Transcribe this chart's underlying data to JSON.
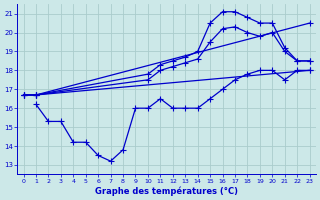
{
  "title": "Graphe des températures (°C)",
  "background_color": "#cce8e8",
  "grid_color": "#aacccc",
  "line_color": "#0000cc",
  "xlim": [
    -0.5,
    23.5
  ],
  "ylim": [
    12.5,
    21.5
  ],
  "xticks": [
    0,
    1,
    2,
    3,
    4,
    5,
    6,
    7,
    8,
    9,
    10,
    11,
    12,
    13,
    14,
    15,
    16,
    17,
    18,
    19,
    20,
    21,
    22,
    23
  ],
  "yticks": [
    13,
    14,
    15,
    16,
    17,
    18,
    19,
    20,
    21
  ],
  "series": [
    {
      "x": [
        0,
        1,
        10,
        11,
        12,
        13,
        14,
        15,
        16,
        17,
        18,
        19,
        20,
        21,
        22,
        23
      ],
      "y": [
        16.7,
        16.7,
        17.8,
        18.3,
        18.5,
        18.7,
        19.0,
        20.5,
        21.1,
        21.1,
        20.8,
        20.5,
        20.5,
        19.2,
        18.5,
        18.5
      ]
    },
    {
      "x": [
        0,
        1,
        10,
        11,
        12,
        13,
        14,
        15,
        16,
        17,
        18,
        19,
        20,
        21,
        22,
        23
      ],
      "y": [
        16.7,
        16.7,
        17.5,
        18.0,
        18.2,
        18.4,
        18.6,
        19.5,
        20.2,
        20.3,
        20.0,
        19.8,
        20.0,
        19.0,
        18.5,
        18.5
      ]
    },
    {
      "x": [
        0,
        1,
        23
      ],
      "y": [
        16.7,
        16.7,
        20.5
      ]
    },
    {
      "x": [
        0,
        1,
        23
      ],
      "y": [
        16.7,
        16.7,
        18.0
      ]
    },
    {
      "x": [
        1,
        2,
        3,
        4,
        5,
        6,
        7,
        8,
        9,
        10,
        11,
        12,
        13,
        14,
        15,
        16,
        17,
        18,
        19,
        20,
        21,
        22,
        23
      ],
      "y": [
        16.2,
        15.3,
        15.3,
        14.2,
        14.2,
        13.5,
        13.2,
        13.8,
        16.0,
        16.0,
        16.5,
        16.0,
        16.0,
        16.0,
        16.5,
        17.0,
        17.5,
        17.8,
        18.0,
        18.0,
        17.5,
        18.0,
        18.0
      ]
    }
  ]
}
